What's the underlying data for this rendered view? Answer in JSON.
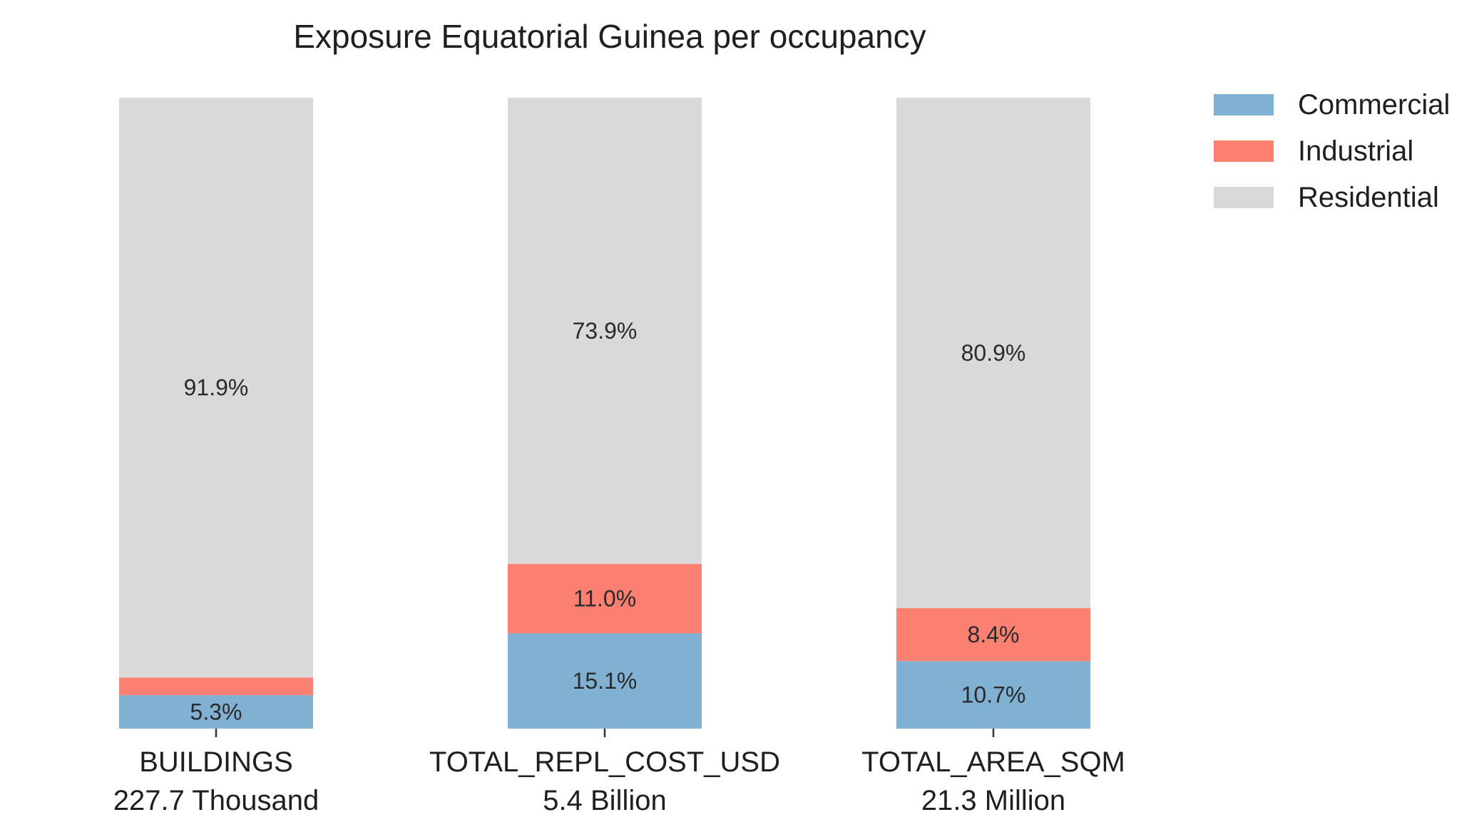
{
  "chart_data": {
    "type": "bar",
    "stacked": true,
    "normalized_percent": true,
    "title": "Exposure Equatorial Guinea per occupancy",
    "categories": [
      "BUILDINGS",
      "TOTAL_REPL_COST_USD",
      "TOTAL_AREA_SQM"
    ],
    "category_totals": [
      "227.7 Thousand",
      "5.4 Billion",
      "21.3 Million"
    ],
    "series": [
      {
        "name": "Commercial",
        "color": "#80b1d3",
        "values": [
          5.3,
          15.1,
          10.7
        ],
        "labels": [
          "5.3%",
          "15.1%",
          "10.7%"
        ]
      },
      {
        "name": "Industrial",
        "color": "#fb8072",
        "values": [
          2.8,
          11.0,
          8.4
        ],
        "labels": [
          "",
          "11.0%",
          "8.4%"
        ]
      },
      {
        "name": "Residential",
        "color": "#d9d9d9",
        "values": [
          91.9,
          73.9,
          80.9
        ],
        "labels": [
          "91.9%",
          "73.9%",
          "80.9%"
        ]
      }
    ],
    "ylim": [
      0,
      100
    ],
    "grid": false,
    "legend_position": "top-right"
  }
}
